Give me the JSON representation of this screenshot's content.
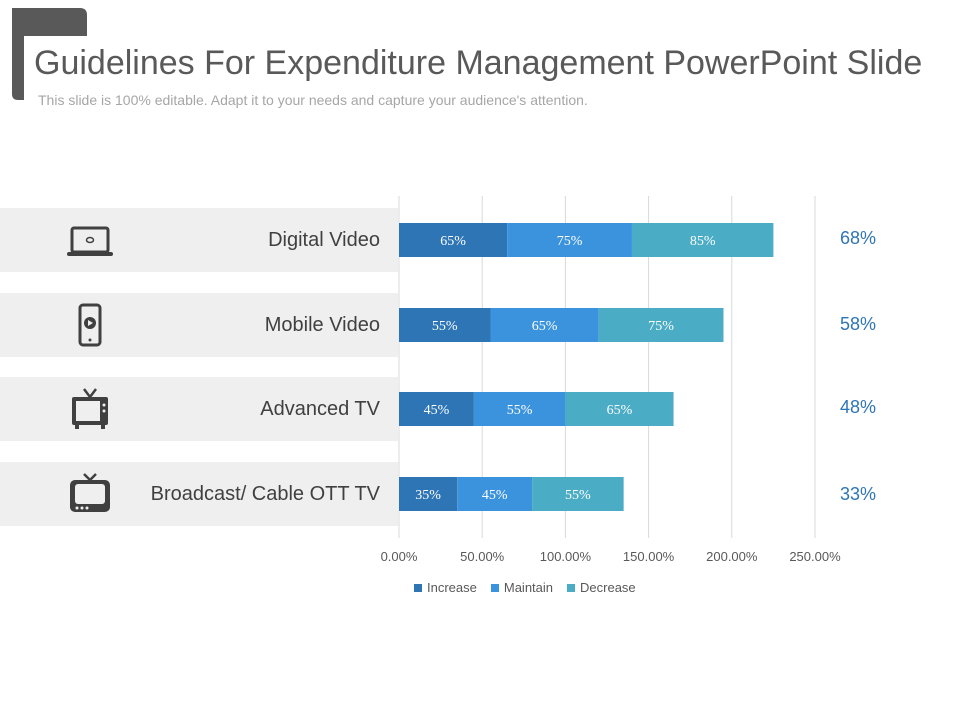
{
  "slide": {
    "title": "Guidelines For Expenditure Management PowerPoint Slide",
    "subtitle": "This slide is 100% editable. Adapt it to your needs and capture your audience's attention."
  },
  "rows": [
    {
      "label": "Digital Video",
      "icon": "laptop-icon",
      "total": "68%"
    },
    {
      "label": "Mobile Video",
      "icon": "smartphone-icon",
      "total": "58%"
    },
    {
      "label": "Advanced TV",
      "icon": "tv-icon",
      "total": "48%"
    },
    {
      "label": "Broadcast/  Cable OTT TV",
      "icon": "retro-tv-icon",
      "total": "33%"
    }
  ],
  "chart_data": {
    "type": "bar",
    "orientation": "horizontal",
    "stacked": true,
    "categories": [
      "Digital Video",
      "Mobile Video",
      "Advanced TV",
      "Broadcast/  Cable OTT TV"
    ],
    "series": [
      {
        "name": "Increase",
        "values": [
          65,
          55,
          45,
          35
        ],
        "color": "#2e75b6"
      },
      {
        "name": "Maintain",
        "values": [
          75,
          65,
          55,
          45
        ],
        "color": "#3a93dc"
      },
      {
        "name": "Decrease",
        "values": [
          85,
          75,
          65,
          55
        ],
        "color": "#4bacc6"
      }
    ],
    "xlim": [
      0,
      250
    ],
    "xticks": [
      "0.00%",
      "50.00%",
      "100.00%",
      "150.00%",
      "200.00%",
      "250.00%"
    ],
    "gridlines": true,
    "legend_position": "bottom"
  }
}
